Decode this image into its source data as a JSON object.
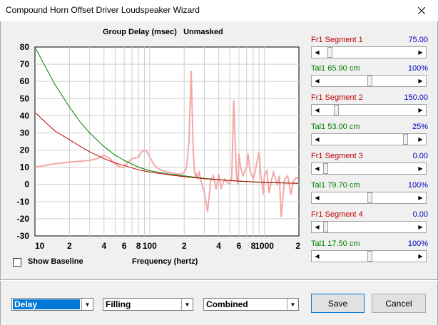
{
  "window": {
    "title": "Compound Horn Offset Driver Loudspeaker Wizard"
  },
  "chart_header": {
    "left": "Group Delay (msec)",
    "right": "Unmasked"
  },
  "chart_data": {
    "type": "line",
    "title": "Group Delay (msec)",
    "xlabel": "Frequency (hertz)",
    "ylabel": "",
    "xscale": "log",
    "xlim": [
      10,
      2000
    ],
    "ylim": [
      -30,
      80
    ],
    "yticks": [
      80,
      70,
      60,
      50,
      40,
      30,
      20,
      10,
      0,
      -10,
      -20,
      -30
    ],
    "xtick_labels": [
      {
        "x": 10,
        "label": "10"
      },
      {
        "x": 20,
        "label": "2"
      },
      {
        "x": 40,
        "label": "4"
      },
      {
        "x": 60,
        "label": "6"
      },
      {
        "x": 80,
        "label": "8"
      },
      {
        "x": 100,
        "label": "100"
      },
      {
        "x": 200,
        "label": "2"
      },
      {
        "x": 400,
        "label": "4"
      },
      {
        "x": 600,
        "label": "6"
      },
      {
        "x": 800,
        "label": "8"
      },
      {
        "x": 1000,
        "label": "1000"
      },
      {
        "x": 2000,
        "label": "2"
      }
    ],
    "grid": true,
    "series": [
      {
        "color": "#008000",
        "x": [
          10,
          12,
          15,
          20,
          25,
          30,
          40,
          50,
          60,
          80,
          100,
          150,
          200,
          300,
          500,
          800,
          1000,
          2000
        ],
        "y": [
          80,
          70,
          58,
          45,
          36,
          30,
          22,
          17,
          14,
          10,
          8,
          6,
          5,
          3.5,
          2.2,
          1.4,
          1.1,
          0.6
        ]
      },
      {
        "color": "#c00000",
        "x": [
          10,
          12,
          15,
          20,
          25,
          30,
          40,
          50,
          60,
          80,
          100,
          150,
          200,
          300,
          500,
          800,
          1000,
          2000
        ],
        "y": [
          42,
          37,
          31,
          26,
          22,
          19,
          15,
          12.5,
          11,
          8.5,
          7.2,
          5.5,
          4.5,
          3.3,
          2.2,
          1.5,
          1.2,
          0.6
        ]
      },
      {
        "color": "#f4a7a7",
        "x": [
          10,
          15,
          20,
          30,
          35,
          40,
          45,
          50,
          55,
          60,
          65,
          70,
          80,
          85,
          90,
          95,
          100,
          110,
          120,
          130,
          150,
          170,
          190,
          200,
          210,
          220,
          230,
          240,
          245,
          250,
          255,
          260,
          270,
          280,
          300,
          320,
          340,
          360,
          380,
          400,
          420,
          450,
          480,
          500,
          520,
          540,
          560,
          570,
          580,
          590,
          600,
          620,
          650,
          680,
          700,
          720,
          750,
          780,
          800,
          820,
          850,
          900,
          930,
          950,
          980,
          1000,
          1050,
          1100,
          1150,
          1200,
          1250,
          1300,
          1350,
          1400,
          1500,
          1600,
          1700,
          1800,
          1900,
          2000
        ],
        "y": [
          10,
          12,
          13,
          14,
          15,
          17,
          15,
          12,
          10,
          10,
          13,
          15,
          16,
          19,
          20,
          19,
          16,
          11,
          9,
          8,
          7,
          6,
          6,
          7,
          10,
          25,
          66,
          20,
          8,
          5,
          6,
          4,
          7,
          2,
          -5,
          -16,
          2,
          5,
          -3,
          6,
          -2,
          3,
          1,
          0,
          4,
          49,
          20,
          6,
          2,
          0,
          18,
          10,
          5,
          8,
          10,
          18,
          8,
          5,
          3,
          6,
          11,
          19,
          5,
          2,
          -6,
          5,
          8,
          -5,
          2,
          7,
          3,
          0,
          5,
          -19,
          3,
          5,
          -6,
          2,
          4,
          3
        ]
      }
    ]
  },
  "segments": [
    {
      "label": "Fr1  Segment 1",
      "value": "75.00",
      "slider": 0.05
    },
    {
      "label": "Tal1  65.90 cm",
      "value": "100%",
      "slider": 0.5
    },
    {
      "label": "Fr1  Segment 2",
      "value": "150.00",
      "slider": 0.12
    },
    {
      "label": "Tal1  53.00 cm",
      "value": "25%",
      "slider": 0.9
    },
    {
      "label": "Fr1  Segment 3",
      "value": "0.00",
      "slider": 0.0
    },
    {
      "label": "Tal1  79.70 cm",
      "value": "100%",
      "slider": 0.5
    },
    {
      "label": "Fr1  Segment 4",
      "value": "0.00",
      "slider": 0.0
    },
    {
      "label": "Tal1  17.50 cm",
      "value": "100%",
      "slider": 0.5
    }
  ],
  "controls": {
    "show_baseline": "Show Baseline",
    "xlabel": "Frequency (hertz)",
    "combo1": "Delay",
    "combo2": "Filling",
    "combo3": "Combined",
    "save": "Save",
    "cancel": "Cancel"
  }
}
